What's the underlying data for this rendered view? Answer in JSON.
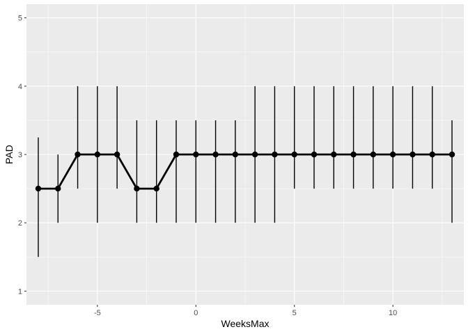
{
  "chart_data": {
    "type": "line",
    "title": "",
    "xlabel": "WeeksMax",
    "ylabel": "PAD",
    "xlim": [
      -8.6,
      13.6
    ],
    "ylim": [
      0.8,
      5.2
    ],
    "x_ticks": [
      -5,
      0,
      5,
      10
    ],
    "y_ticks": [
      1,
      2,
      3,
      4,
      5
    ],
    "grid": true,
    "legend": "none",
    "colors": {
      "panel": "#ebebeb",
      "grid": "#ffffff",
      "line": "#000000",
      "tick_text": "#4d4d4d"
    },
    "series": [
      {
        "x": [
          -8,
          -7,
          -6,
          -5,
          -4,
          -3,
          -2,
          -1,
          0,
          1,
          2,
          3,
          4,
          5,
          6,
          7,
          8,
          9,
          10,
          11,
          12,
          13
        ],
        "y": [
          2.5,
          2.5,
          3,
          3,
          3,
          2.5,
          2.5,
          3,
          3,
          3,
          3,
          3,
          3,
          3,
          3,
          3,
          3,
          3,
          3,
          3,
          3,
          3
        ],
        "ymin": [
          1.5,
          2,
          2.5,
          2,
          2.5,
          2,
          2,
          2,
          2,
          2,
          2,
          2,
          2,
          2.5,
          2.5,
          2.5,
          2.5,
          2.5,
          2.5,
          2.5,
          2.5,
          2
        ],
        "ymax": [
          3.25,
          3,
          4,
          4,
          4,
          3.5,
          3.5,
          3.5,
          3.5,
          3.5,
          3.5,
          4,
          4,
          4,
          4,
          4,
          4,
          4,
          4,
          4,
          4,
          3.5
        ]
      }
    ]
  }
}
